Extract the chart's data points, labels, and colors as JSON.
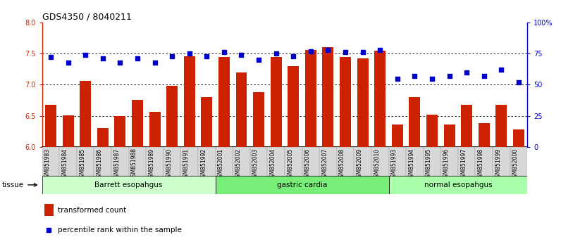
{
  "title": "GDS4350 / 8040211",
  "samples": [
    "GSM851983",
    "GSM851984",
    "GSM851985",
    "GSM851986",
    "GSM851987",
    "GSM851988",
    "GSM851989",
    "GSM851990",
    "GSM851991",
    "GSM851992",
    "GSM852001",
    "GSM852002",
    "GSM852003",
    "GSM852004",
    "GSM852005",
    "GSM852006",
    "GSM852007",
    "GSM852008",
    "GSM852009",
    "GSM852010",
    "GSM851993",
    "GSM851994",
    "GSM851995",
    "GSM851996",
    "GSM851997",
    "GSM851998",
    "GSM851999",
    "GSM852000"
  ],
  "bar_values": [
    6.68,
    6.51,
    7.06,
    6.3,
    6.5,
    6.75,
    6.56,
    6.98,
    7.46,
    6.8,
    7.45,
    7.2,
    6.88,
    7.45,
    7.3,
    7.56,
    7.6,
    7.45,
    7.42,
    7.55,
    6.36,
    6.8,
    6.52,
    6.36,
    6.68,
    6.38,
    6.68,
    6.28
  ],
  "dot_values": [
    72,
    68,
    74,
    71,
    68,
    71,
    68,
    73,
    75,
    73,
    76,
    74,
    70,
    75,
    73,
    77,
    78,
    76,
    76,
    78,
    55,
    57,
    55,
    57,
    60,
    57,
    62,
    52
  ],
  "bar_color": "#cc2200",
  "dot_color": "#0000cc",
  "ylim_left": [
    6.0,
    8.0
  ],
  "ylim_right": [
    0,
    100
  ],
  "yticks_left": [
    6.0,
    6.5,
    7.0,
    7.5,
    8.0
  ],
  "yticks_right": [
    0,
    25,
    50,
    75,
    100
  ],
  "ytick_labels_right": [
    "0",
    "25",
    "50",
    "75",
    "100%"
  ],
  "tissue_groups": [
    {
      "label": "Barrett esopahgus",
      "start": 0,
      "end": 10,
      "color": "#ccffcc"
    },
    {
      "label": "gastric cardia",
      "start": 10,
      "end": 20,
      "color": "#77ee77"
    },
    {
      "label": "normal esopahgus",
      "start": 20,
      "end": 28,
      "color": "#aaffaa"
    }
  ],
  "legend_bar_label": "transformed count",
  "legend_dot_label": "percentile rank within the sample",
  "tissue_label": "tissue",
  "hline_values": [
    6.5,
    7.0,
    7.5
  ],
  "bar_bottom": 6.0,
  "xtick_bg_color": "#d8d8d8",
  "xtick_border_color": "#999999"
}
